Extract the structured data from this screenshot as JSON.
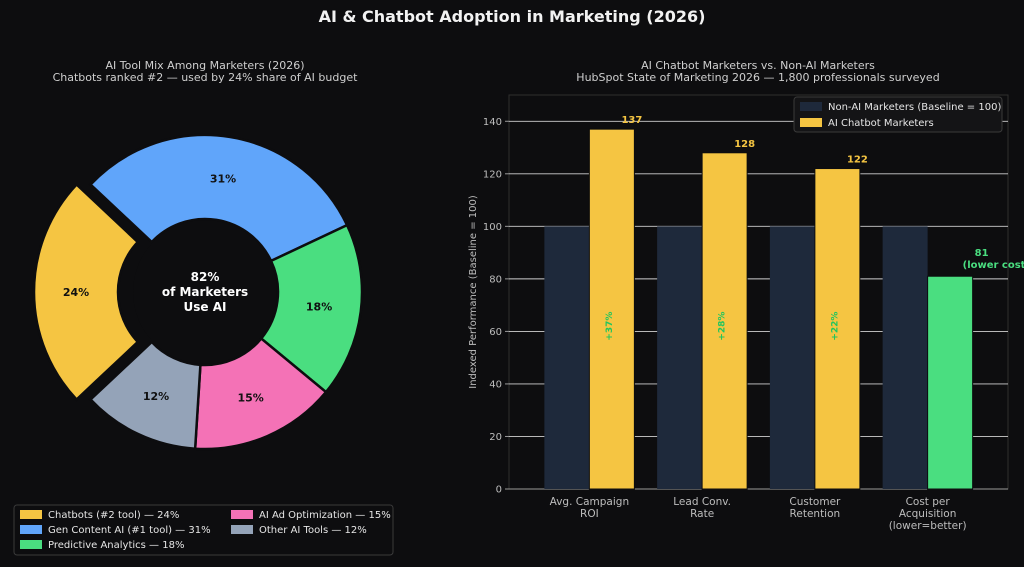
{
  "page_title": "AI & Chatbot Adoption in Marketing (2026)",
  "colors": {
    "background": "#0d0d0f",
    "chatbots": "#f5c542",
    "gen_content": "#60a5fa",
    "predictive": "#4ade80",
    "ad_optimization": "#f472b6",
    "other": "#94a3b8",
    "non_ai_bar": "#1e293b",
    "ai_bar": "#f5c542",
    "cost_bar": "#4ade80",
    "delta_text": "#22c55e"
  },
  "chart_data": [
    {
      "type": "pie",
      "title": "AI Tool Mix Among Marketers (2026)",
      "subtitle": "Chatbots ranked #2 — used by 24% share of AI budget",
      "center_label": [
        "82%",
        "of Marketers",
        "Use AI"
      ],
      "slices": [
        {
          "key": "chatbots",
          "label": "24%",
          "value": 24,
          "color": "#f5c542",
          "exploded": true
        },
        {
          "key": "gen_content",
          "label": "31%",
          "value": 31,
          "color": "#60a5fa",
          "exploded": false
        },
        {
          "key": "predictive",
          "label": "18%",
          "value": 18,
          "color": "#4ade80",
          "exploded": false
        },
        {
          "key": "ad_optimization",
          "label": "15%",
          "value": 15,
          "color": "#f472b6",
          "exploded": false
        },
        {
          "key": "other",
          "label": "12%",
          "value": 12,
          "color": "#94a3b8",
          "exploded": false
        }
      ],
      "legend": {
        "placement": "bottom-left",
        "items": [
          {
            "label": "Chatbots (#2 tool) — 24%",
            "color": "#f5c542"
          },
          {
            "label": "Gen Content AI (#1 tool) — 31%",
            "color": "#60a5fa"
          },
          {
            "label": "Predictive Analytics — 18%",
            "color": "#4ade80"
          },
          {
            "label": "AI Ad Optimization — 15%",
            "color": "#f472b6"
          },
          {
            "label": "Other AI Tools — 12%",
            "color": "#94a3b8"
          }
        ]
      }
    },
    {
      "type": "bar",
      "title": "AI Chatbot Marketers vs. Non-AI Marketers",
      "subtitle": "HubSpot State of Marketing 2026 — 1,800 professionals surveyed",
      "ylabel": "Indexed Performance (Baseline = 100)",
      "ylim": [
        0,
        150
      ],
      "yticks": [
        0,
        20,
        40,
        60,
        80,
        100,
        120,
        140
      ],
      "grid": true,
      "categories": [
        [
          "Avg. Campaign",
          "ROI"
        ],
        [
          "Lead Conv.",
          "Rate"
        ],
        [
          "Customer",
          "Retention"
        ],
        [
          "Cost per",
          "Acquisition",
          "(lower=better)"
        ]
      ],
      "series": [
        {
          "name": "Non-AI Marketers (Baseline = 100)",
          "color": "#1e293b",
          "values": [
            100,
            100,
            100,
            100
          ]
        },
        {
          "name": "AI Chatbot Marketers",
          "color": "#f5c542",
          "values": [
            137,
            128,
            122,
            81
          ],
          "point_colors": [
            "#f5c542",
            "#f5c542",
            "#f5c542",
            "#4ade80"
          ]
        }
      ],
      "value_labels": [
        "137",
        "128",
        "122",
        [
          "81",
          "(lower cost)"
        ]
      ],
      "delta_labels": [
        "+37%",
        "+28%",
        "+22%",
        ""
      ],
      "legend_placement": "top-right"
    }
  ]
}
